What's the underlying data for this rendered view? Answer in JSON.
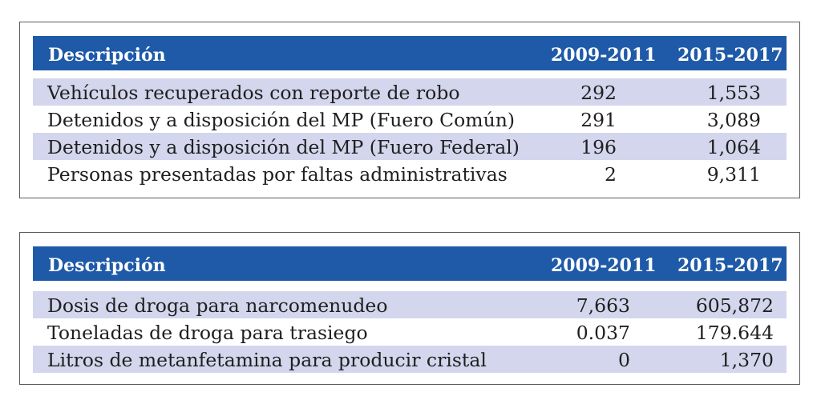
{
  "tables": [
    {
      "header": {
        "description": "Descripción",
        "col1": "2009-2011",
        "col2": "2015-2017"
      },
      "rows": [
        {
          "description": "Vehículos recuperados con reporte de robo",
          "v1": "292",
          "v2": "1,553"
        },
        {
          "description": "Detenidos y a disposición del MP (Fuero Común)",
          "v1": "291",
          "v2": "3,089"
        },
        {
          "description": "Detenidos y a disposición del MP (Fuero Federal)",
          "v1": "196",
          "v2": "1,064"
        },
        {
          "description": "Personas presentadas por faltas administrativas",
          "v1": "2",
          "v2": "9,311"
        }
      ]
    },
    {
      "header": {
        "description": "Descripción",
        "col1": "2009-2011",
        "col2": "2015-2017"
      },
      "rows": [
        {
          "description": "Dosis de droga para narcomenudeo",
          "v1": "7,663",
          "v2": "605,872"
        },
        {
          "description": "Toneladas de droga para trasiego",
          "v1": "0.037",
          "v2": "179.644"
        },
        {
          "description": "Litros de metanfetamina para producir cristal",
          "v1": "0",
          "v2": "1,370"
        }
      ]
    }
  ],
  "colors": {
    "header_bg": "#1f5aa8",
    "header_text": "#ffffff",
    "row_shade": "#d3d6ed",
    "border": "#5a5a5a"
  }
}
